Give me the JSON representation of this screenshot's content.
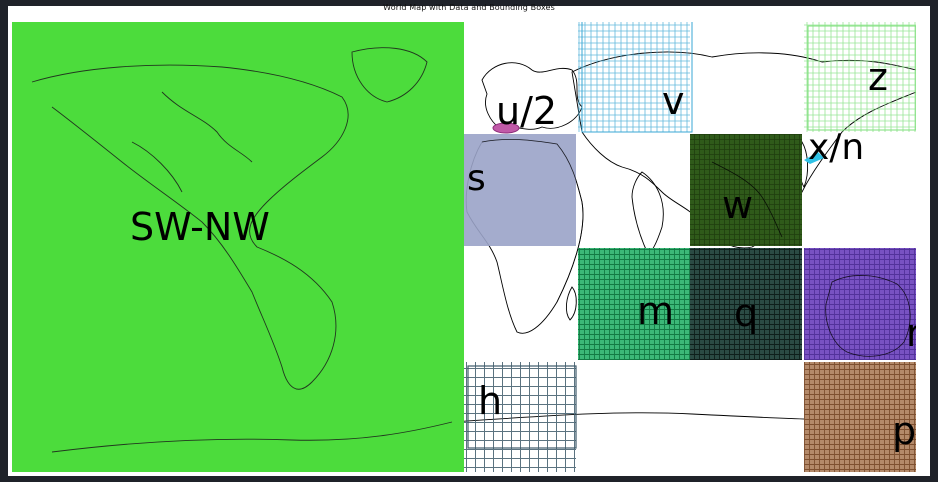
{
  "title": "World Map with Data and Bounding Boxes",
  "regions": [
    {
      "id": "sw-nw",
      "label": "SW-NW",
      "color": "#4cdc3c",
      "style": "solid"
    },
    {
      "id": "s",
      "label": "s",
      "color": "#9aa3c8",
      "style": "solid"
    },
    {
      "id": "u2",
      "label": "u/2",
      "color": "#c15aa8",
      "style": "hatched"
    },
    {
      "id": "v",
      "label": "v",
      "color": "#3aa7d4",
      "style": "hatched"
    },
    {
      "id": "z",
      "label": "z",
      "color": "#7ddf7a",
      "style": "hatched"
    },
    {
      "id": "xn",
      "label": "x/n",
      "color": "#2fc2e6",
      "style": "hatched"
    },
    {
      "id": "w",
      "label": "w",
      "color": "#2f5a1a",
      "style": "solid"
    },
    {
      "id": "m",
      "label": "m",
      "color": "#1f9e5a",
      "style": "hatched"
    },
    {
      "id": "q",
      "label": "q",
      "color": "#1e3a33",
      "style": "hatched"
    },
    {
      "id": "r",
      "label": "r",
      "color": "#6a45b0",
      "style": "hatched"
    },
    {
      "id": "h",
      "label": "h",
      "color": "#3e5a6a",
      "style": "outlined"
    },
    {
      "id": "p",
      "label": "p",
      "color": "#9a6a4a",
      "style": "hatched"
    }
  ]
}
